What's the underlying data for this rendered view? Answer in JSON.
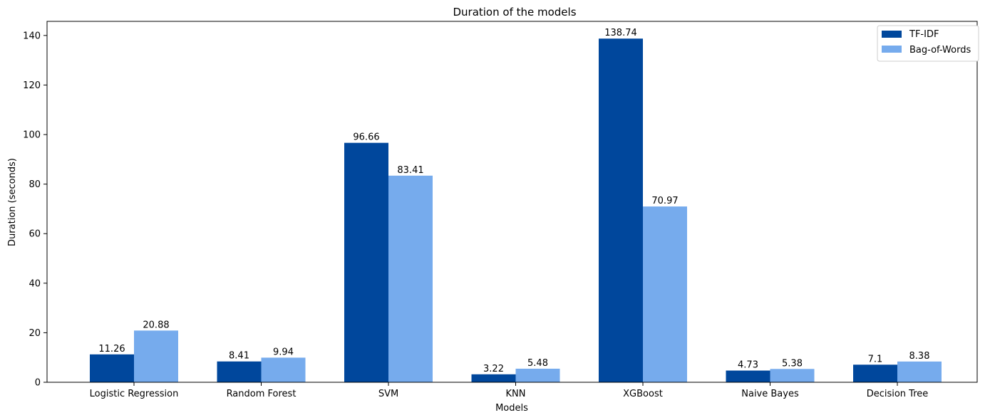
{
  "chart_data": {
    "type": "bar",
    "title": "Duration of the models",
    "xlabel": "Models",
    "ylabel": "Duration (seconds)",
    "ylim": [
      0,
      145.7
    ],
    "yticks": [
      0,
      20,
      40,
      60,
      80,
      100,
      120,
      140
    ],
    "categories": [
      "Logistic Regression",
      "Random Forest",
      "SVM",
      "KNN",
      "XGBoost",
      "Naive Bayes",
      "Decision Tree"
    ],
    "series": [
      {
        "name": "TF-IDF",
        "color": "#00479c",
        "values": [
          11.26,
          8.41,
          96.66,
          3.22,
          138.74,
          4.73,
          7.1
        ]
      },
      {
        "name": "Bag-of-Words",
        "color": "#76abed",
        "values": [
          20.88,
          9.94,
          83.41,
          5.48,
          70.97,
          5.38,
          8.38
        ]
      }
    ],
    "legend": "top-right",
    "grid": false
  }
}
